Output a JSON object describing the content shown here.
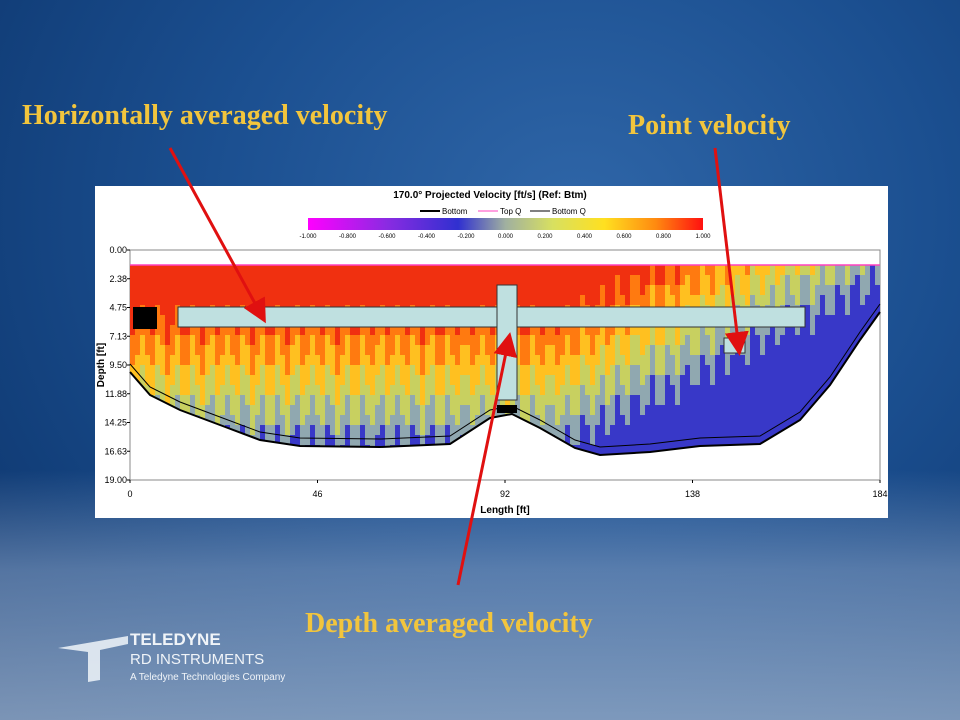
{
  "annotations": {
    "horizontal": "Horizontally averaged velocity",
    "point": "Point velocity",
    "depth": "Depth averaged velocity"
  },
  "figure": {
    "title": "170.0° Projected Velocity [ft/s] (Ref: Btm)",
    "legend": [
      "Bottom",
      "Top Q",
      "Bottom Q"
    ],
    "colorbar_labels": [
      "-1.000",
      "-0.800",
      "-0.600",
      "-0.400",
      "-0.200",
      "0.000",
      "0.200",
      "0.400",
      "0.600",
      "0.800",
      "1.000"
    ],
    "y_axis_label": "Depth [ft]",
    "y_tick_labels": [
      "0.00",
      "2.38",
      "4.75",
      "7.13",
      "9.50",
      "11.88",
      "14.25",
      "16.63",
      "19.00"
    ],
    "x_axis_label": "Length [ft]",
    "x_tick_labels": [
      "0",
      "46",
      "92",
      "138",
      "184"
    ]
  },
  "logo": {
    "name": "TELEDYNE",
    "division": "RD INSTRUMENTS",
    "company": "A Teledyne Technologies Company"
  }
}
